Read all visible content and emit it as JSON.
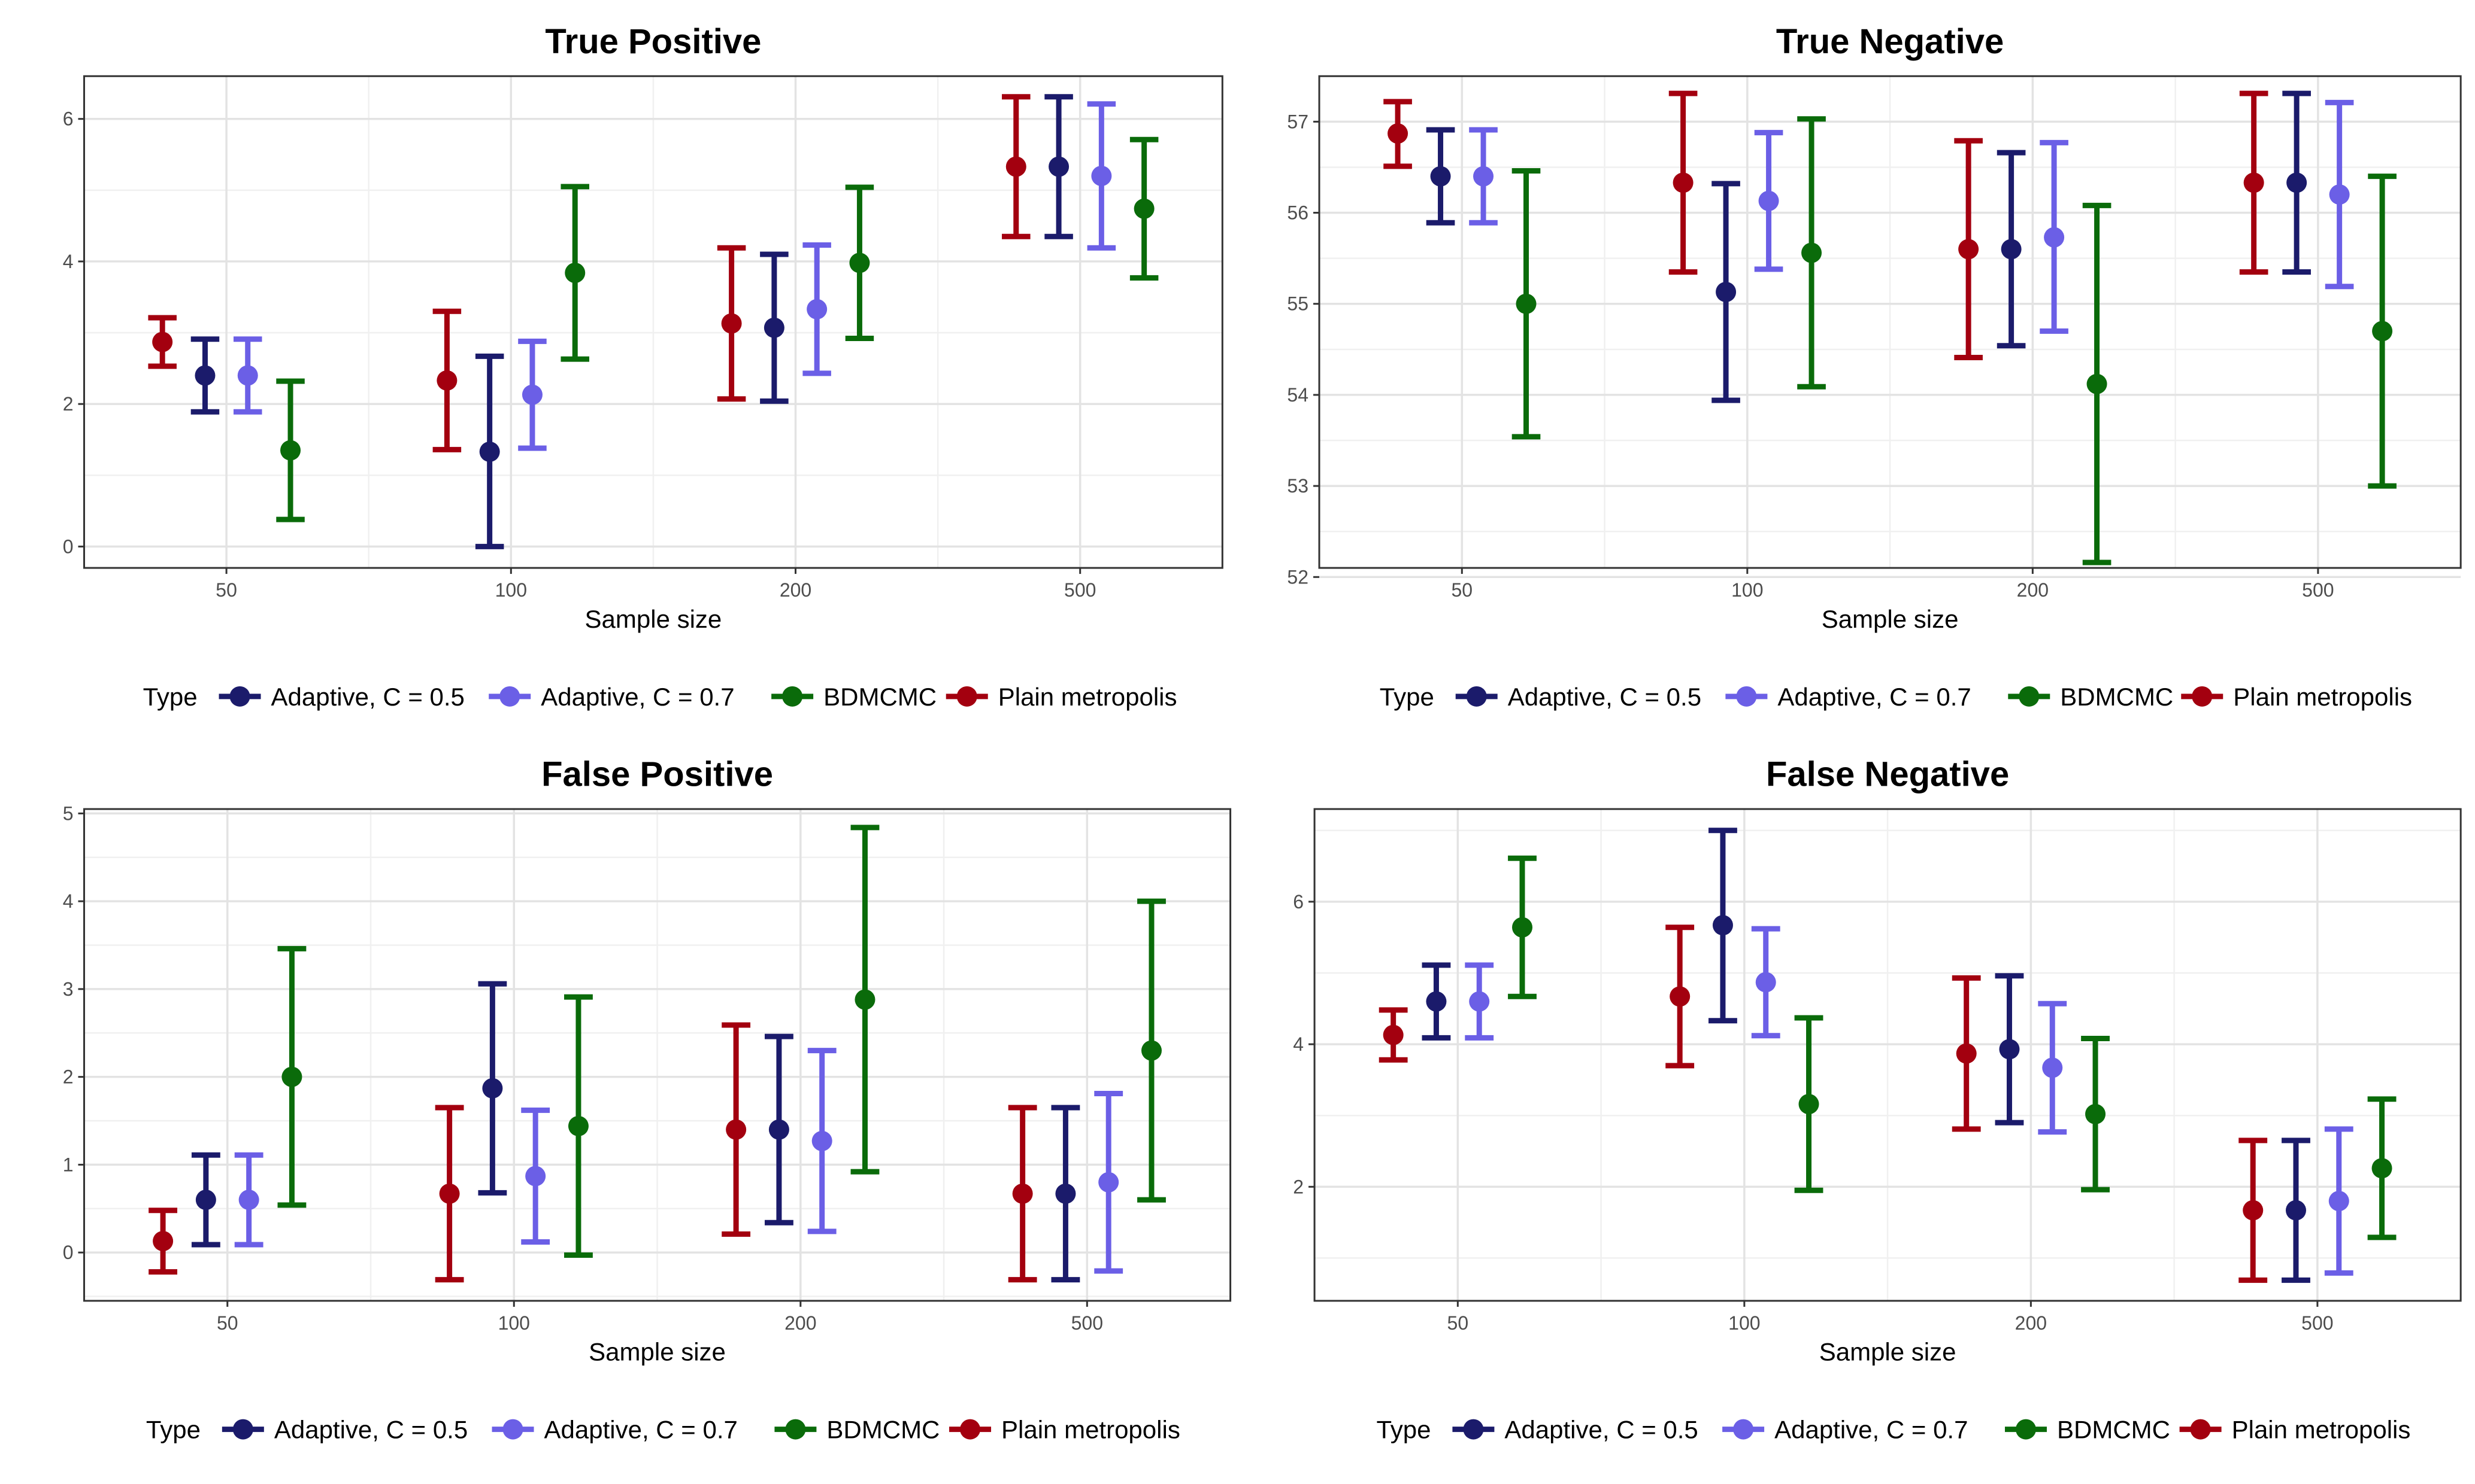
{
  "colors": {
    "Adaptive, C = 0.5": "#1b1b6b",
    "Adaptive, C = 0.7": "#6b5fe6",
    "BDMCMC": "#0a6b0a",
    "Plain metropolis": "#a3000f"
  },
  "chart_data": [
    {
      "type": "scatter",
      "title": "True Positive",
      "xlabel": "Sample size",
      "categories": [
        "50",
        "100",
        "200",
        "500"
      ],
      "ylim": [
        -0.3,
        6.6
      ],
      "yticks": [
        0,
        2,
        4,
        6
      ],
      "grid": true,
      "legend": {
        "title": "Type",
        "position": "bottom",
        "entries": [
          "Adaptive, C = 0.5",
          "Adaptive, C = 0.7",
          "BDMCMC",
          "Plain metropolis"
        ]
      },
      "series": [
        {
          "name": "Plain metropolis",
          "values": [
            2.87,
            2.33,
            3.13,
            5.33
          ],
          "lower": [
            2.53,
            1.36,
            2.07,
            4.35
          ],
          "upper": [
            3.21,
            3.3,
            4.19,
            6.31
          ]
        },
        {
          "name": "Adaptive, C = 0.5",
          "values": [
            2.4,
            1.33,
            3.07,
            5.33
          ],
          "lower": [
            1.89,
            0.0,
            2.04,
            4.35
          ],
          "upper": [
            2.91,
            2.67,
            4.1,
            6.31
          ]
        },
        {
          "name": "Adaptive, C = 0.7",
          "values": [
            2.4,
            2.13,
            3.33,
            5.2
          ],
          "lower": [
            1.89,
            1.38,
            2.43,
            4.19
          ],
          "upper": [
            2.91,
            2.88,
            4.23,
            6.21
          ]
        },
        {
          "name": "BDMCMC",
          "values": [
            1.35,
            3.84,
            3.98,
            4.74
          ],
          "lower": [
            0.38,
            2.63,
            2.92,
            3.77
          ],
          "upper": [
            2.32,
            5.05,
            5.04,
            5.71
          ]
        }
      ]
    },
    {
      "type": "scatter",
      "title": "True Negative",
      "xlabel": "Sample size",
      "categories": [
        "50",
        "100",
        "200",
        "500"
      ],
      "ylim": [
        52.1,
        57.5
      ],
      "yticks": [
        52,
        53,
        54,
        55,
        56,
        57
      ],
      "grid": true,
      "legend": {
        "title": "Type",
        "position": "bottom",
        "entries": [
          "Adaptive, C = 0.5",
          "Adaptive, C = 0.7",
          "BDMCMC",
          "Plain metropolis"
        ]
      },
      "series": [
        {
          "name": "Plain metropolis",
          "values": [
            56.87,
            56.33,
            55.6,
            56.33
          ],
          "lower": [
            56.51,
            55.35,
            54.41,
            55.35
          ],
          "upper": [
            57.22,
            57.31,
            56.79,
            57.31
          ]
        },
        {
          "name": "Adaptive, C = 0.5",
          "values": [
            56.4,
            55.13,
            55.6,
            56.33
          ],
          "lower": [
            55.89,
            53.94,
            54.54,
            55.35
          ],
          "upper": [
            56.91,
            56.32,
            56.66,
            57.31
          ]
        },
        {
          "name": "Adaptive, C = 0.7",
          "values": [
            56.4,
            56.13,
            55.73,
            56.2
          ],
          "lower": [
            55.89,
            55.38,
            54.7,
            55.19
          ],
          "upper": [
            56.91,
            56.88,
            56.77,
            57.21
          ]
        },
        {
          "name": "BDMCMC",
          "values": [
            55.0,
            55.56,
            54.12,
            54.7
          ],
          "lower": [
            53.54,
            54.09,
            52.16,
            53.0
          ],
          "upper": [
            56.46,
            57.03,
            56.08,
            56.4
          ]
        }
      ]
    },
    {
      "type": "scatter",
      "title": "False Positive",
      "xlabel": "Sample size",
      "categories": [
        "50",
        "100",
        "200",
        "500"
      ],
      "ylim": [
        -0.55,
        5.05
      ],
      "yticks": [
        0,
        1,
        2,
        3,
        4,
        5
      ],
      "grid": true,
      "legend": {
        "title": "Type",
        "position": "bottom",
        "entries": [
          "Adaptive, C = 0.5",
          "Adaptive, C = 0.7",
          "BDMCMC",
          "Plain metropolis"
        ]
      },
      "series": [
        {
          "name": "Plain metropolis",
          "values": [
            0.13,
            0.67,
            1.4,
            0.67
          ],
          "lower": [
            -0.22,
            -0.31,
            0.21,
            -0.31
          ],
          "upper": [
            0.48,
            1.65,
            2.59,
            1.65
          ]
        },
        {
          "name": "Adaptive, C = 0.5",
          "values": [
            0.6,
            1.87,
            1.4,
            0.67
          ],
          "lower": [
            0.09,
            0.68,
            0.34,
            -0.31
          ],
          "upper": [
            1.11,
            3.06,
            2.46,
            1.65
          ]
        },
        {
          "name": "Adaptive, C = 0.7",
          "values": [
            0.6,
            0.87,
            1.27,
            0.8
          ],
          "lower": [
            0.09,
            0.12,
            0.24,
            -0.21
          ],
          "upper": [
            1.11,
            1.62,
            2.3,
            1.81
          ]
        },
        {
          "name": "BDMCMC",
          "values": [
            2.0,
            1.44,
            2.88,
            2.3
          ],
          "lower": [
            0.54,
            -0.03,
            0.92,
            0.6
          ],
          "upper": [
            3.46,
            2.91,
            4.84,
            4.0
          ]
        }
      ]
    },
    {
      "type": "scatter",
      "title": "False Negative",
      "xlabel": "Sample size",
      "categories": [
        "50",
        "100",
        "200",
        "500"
      ],
      "ylim": [
        0.4,
        7.3
      ],
      "yticks": [
        2,
        4,
        6
      ],
      "grid": true,
      "legend": {
        "title": "Type",
        "position": "bottom",
        "entries": [
          "Adaptive, C = 0.5",
          "Adaptive, C = 0.7",
          "BDMCMC",
          "Plain metropolis"
        ]
      },
      "series": [
        {
          "name": "Plain metropolis",
          "values": [
            4.13,
            4.67,
            3.87,
            1.67
          ],
          "lower": [
            3.78,
            3.7,
            2.81,
            0.69
          ],
          "upper": [
            4.48,
            5.64,
            4.93,
            2.65
          ]
        },
        {
          "name": "Adaptive, C = 0.5",
          "values": [
            4.6,
            5.67,
            3.93,
            1.67
          ],
          "lower": [
            4.09,
            4.33,
            2.9,
            0.69
          ],
          "upper": [
            5.11,
            7.0,
            4.96,
            2.65
          ]
        },
        {
          "name": "Adaptive, C = 0.7",
          "values": [
            4.6,
            4.87,
            3.67,
            1.8
          ],
          "lower": [
            4.09,
            4.12,
            2.77,
            0.79
          ],
          "upper": [
            5.11,
            5.62,
            4.57,
            2.81
          ]
        },
        {
          "name": "BDMCMC",
          "values": [
            5.64,
            3.16,
            3.02,
            2.26
          ],
          "lower": [
            4.67,
            1.95,
            1.96,
            1.29
          ],
          "upper": [
            6.61,
            4.37,
            4.08,
            3.23
          ]
        }
      ]
    }
  ]
}
